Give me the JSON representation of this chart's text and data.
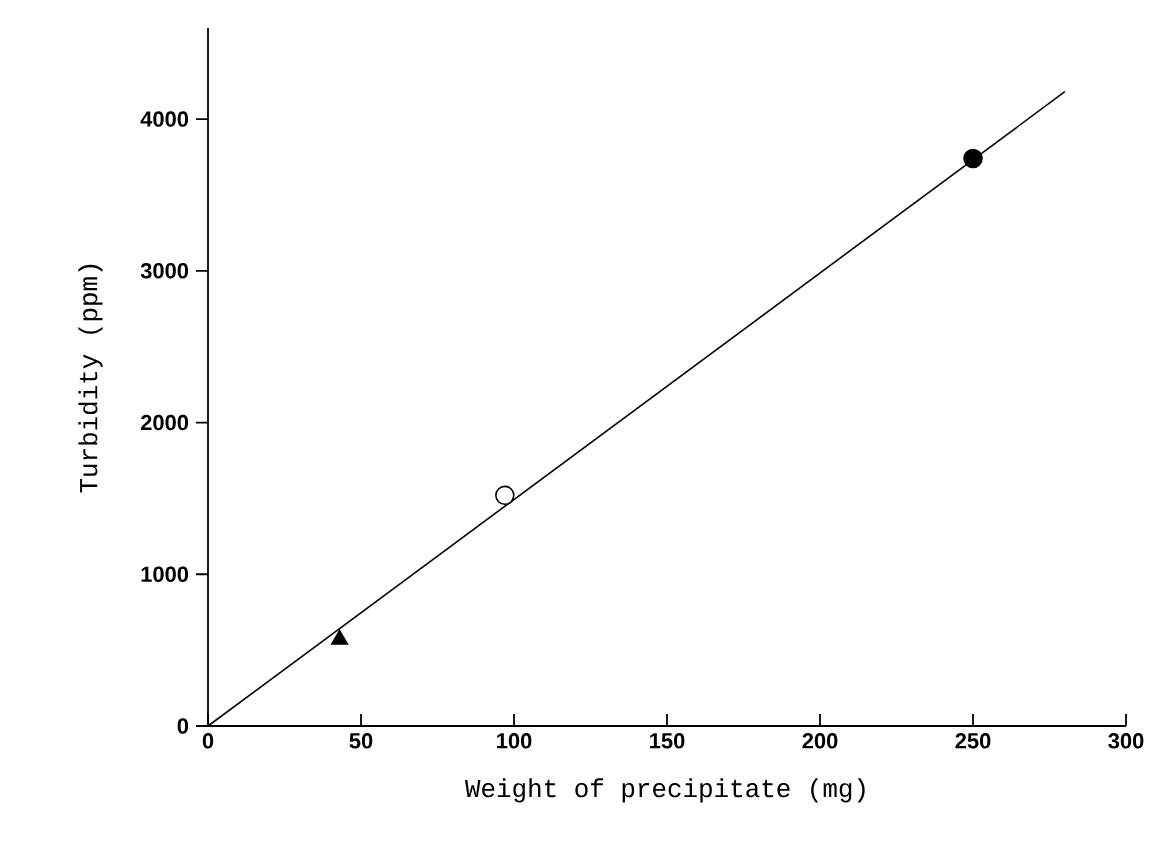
{
  "chart_data": {
    "type": "scatter",
    "xlabel": "Weight of precipitate (mg)",
    "ylabel": "Turbidity (ppm)",
    "xlim": [
      0,
      300
    ],
    "xticks": [
      0,
      50,
      100,
      150,
      200,
      250,
      300
    ],
    "ylim": [
      0,
      4600
    ],
    "yticks": [
      0,
      1000,
      2000,
      3000,
      4000
    ],
    "grid": false,
    "series": [
      {
        "type": "line",
        "color": "#000000",
        "x": [
          0,
          280
        ],
        "values": [
          0,
          4180
        ],
        "marker": "none",
        "line_style": "solid"
      },
      {
        "color": "#000000",
        "x": [
          43
        ],
        "values": [
          570
        ],
        "marker": "triangle"
      },
      {
        "color": "#ffffff",
        "x": [
          97
        ],
        "values": [
          1520
        ],
        "marker": "circle"
      },
      {
        "color": "#000000",
        "x": [
          250
        ],
        "values": [
          3740
        ],
        "marker": "circle"
      }
    ]
  }
}
